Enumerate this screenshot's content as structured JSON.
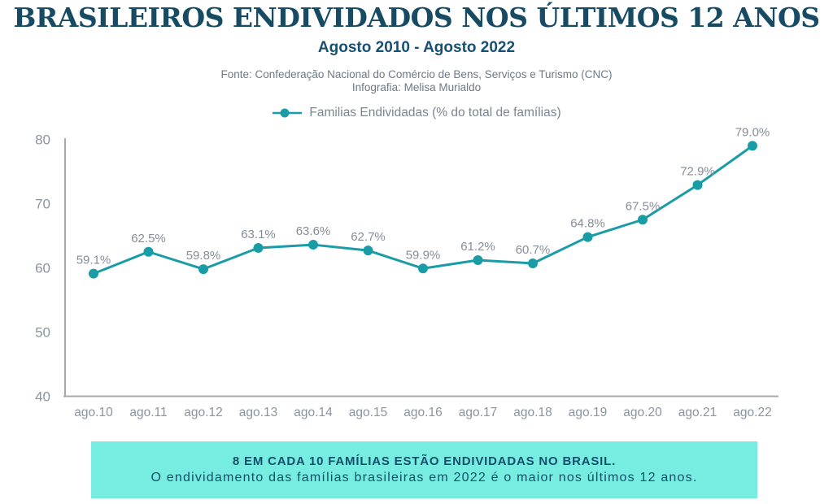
{
  "header": {
    "title": "BRASILEIROS ENDIVIDADOS NOS ÚLTIMOS 12 ANOS",
    "subtitle": "Agosto 2010 - Agosto 2022",
    "source_line1": "Fonte: Confederação Nacional do Comércio de Bens, Serviços e Turismo (CNC)",
    "source_line2": "Infografia: Melisa Murialdo"
  },
  "legend": {
    "label": "Familias Endividadas (% do total de famílias)"
  },
  "chart_data": {
    "type": "line",
    "title": "BRASILEIROS ENDIVIDADOS NOS ÚLTIMOS 12 ANOS",
    "subtitle": "Agosto 2010 - Agosto 2022",
    "categories": [
      "ago.10",
      "ago.11",
      "ago.12",
      "ago.13",
      "ago.14",
      "ago.15",
      "ago.16",
      "ago.17",
      "ago.18",
      "ago.19",
      "ago.20",
      "ago.21",
      "ago.22"
    ],
    "series": [
      {
        "name": "Familias Endividadas (% do total de famílias)",
        "values": [
          59.1,
          62.5,
          59.8,
          63.1,
          63.6,
          62.7,
          59.9,
          61.2,
          60.7,
          64.8,
          67.5,
          72.9,
          79.0
        ],
        "labels": [
          "59.1%",
          "62.5%",
          "59.8%",
          "63.1%",
          "63.6%",
          "62.7%",
          "59.9%",
          "61.2%",
          "60.7%",
          "64.8%",
          "67.5%",
          "72.9%",
          "79.0%"
        ],
        "color": "#1a9ca6"
      }
    ],
    "xlabel": "",
    "ylabel": "",
    "ylim": [
      40,
      80
    ],
    "yticks": [
      40,
      50,
      60,
      70,
      80
    ],
    "grid": false,
    "marker": "circle",
    "legend_position": "top-center"
  },
  "footer": {
    "line1": "8 EM CADA 10 FAMÍLIAS ESTÃO ENDIVIDADAS NO BRASIL.",
    "line2": "O endividamento das famílias brasileiras em 2022 é o maior nos últimos 12 anos."
  },
  "colors": {
    "title": "#174a63",
    "subtitle": "#175073",
    "source_text": "#6d7a85",
    "legend_text": "#7b8591",
    "axis_line": "#a8a8a8",
    "tick_label": "#8a94a0",
    "data_label": "#848e99",
    "series": "#1a9ca6",
    "banner_background": "#76ede0",
    "banner_text": "#14506b"
  }
}
